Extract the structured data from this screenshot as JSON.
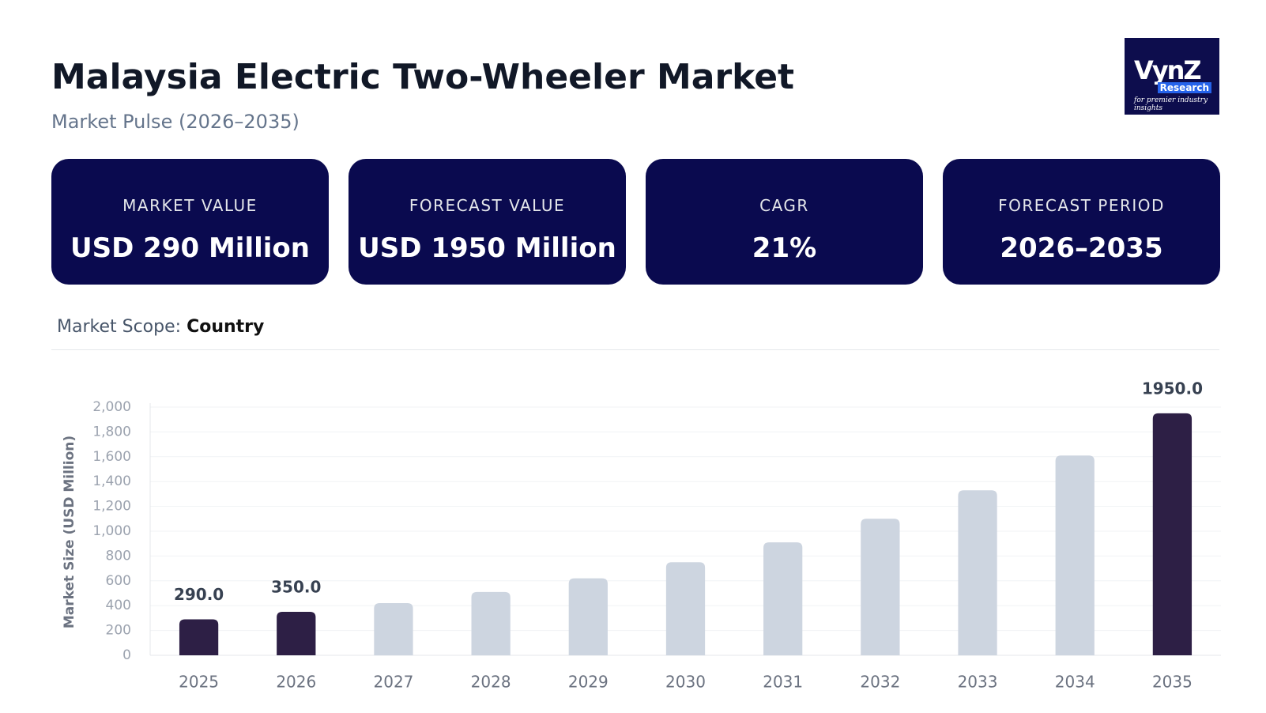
{
  "header": {
    "title": "Malaysia Electric Two-Wheeler Market",
    "subtitle": "Market Pulse (2026–2035)"
  },
  "logo": {
    "name": "VynZ",
    "sub": "Research",
    "tagline": "for premier industry insights"
  },
  "cards": [
    {
      "label": "MARKET VALUE",
      "value": "USD 290 Million"
    },
    {
      "label": "FORECAST VALUE",
      "value": "USD 1950 Million"
    },
    {
      "label": "CAGR",
      "value": "21%"
    },
    {
      "label": "FORECAST PERIOD",
      "value": "2026–2035"
    }
  ],
  "scope": {
    "label": "Market Scope:",
    "value": "Country"
  },
  "chart_data": {
    "type": "bar",
    "y_label": "Market Size (USD Million)",
    "categories": [
      "2025",
      "2026",
      "2027",
      "2028",
      "2029",
      "2030",
      "2031",
      "2032",
      "2033",
      "2034",
      "2035"
    ],
    "values": [
      290,
      350,
      420,
      510,
      620,
      750,
      910,
      1100,
      1330,
      1610,
      1950
    ],
    "value_labels": [
      "290.0",
      "350.0",
      null,
      null,
      null,
      null,
      null,
      null,
      null,
      null,
      "1950.0"
    ],
    "colors": [
      "#2d1f45",
      "#2d1f45",
      "#cdd5e0",
      "#cdd5e0",
      "#cdd5e0",
      "#cdd5e0",
      "#cdd5e0",
      "#cdd5e0",
      "#cdd5e0",
      "#cdd5e0",
      "#2d1f45"
    ],
    "ylim": [
      0,
      2000
    ],
    "yticks": [
      0,
      200,
      400,
      600,
      800,
      {
        "value": 1000,
        "label": "1,000"
      },
      {
        "value": 1200,
        "label": "1,200"
      },
      {
        "value": 1400,
        "label": "1,400"
      },
      {
        "value": 1600,
        "label": "1,600"
      },
      {
        "value": 1800,
        "label": "1,800"
      },
      {
        "value": 2000,
        "label": "2,000"
      }
    ],
    "grid": true
  }
}
